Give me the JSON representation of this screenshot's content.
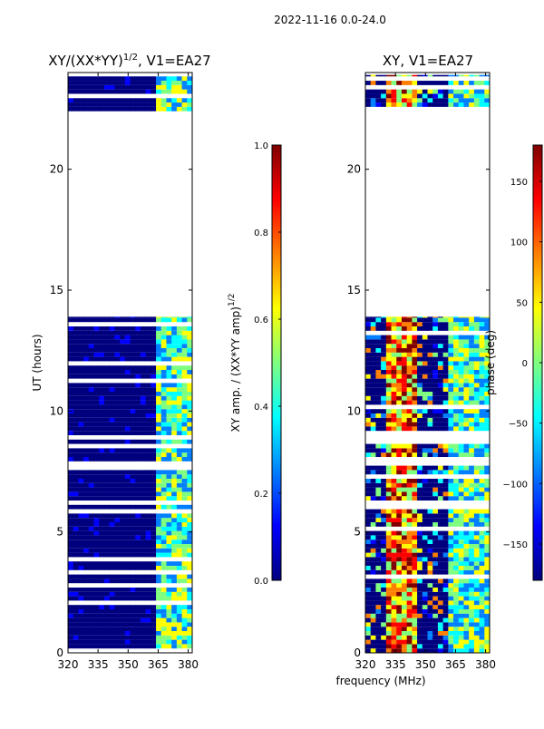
{
  "suptitle": "2022-11-16 0.0-24.0",
  "colormap": [
    "#00007f",
    "#0000ff",
    "#007fff",
    "#00ffff",
    "#7fff7f",
    "#ffff00",
    "#ff7f00",
    "#ff0000",
    "#7f0000"
  ],
  "chart_data": [
    {
      "type": "heatmap",
      "title": "XY/(XX*YY)^1/2, V1=EA27",
      "title_main": "XY/(XX*YY)",
      "title_sup": "1/2",
      "title_tail": ", V1=EA27",
      "xlabel": "",
      "ylabel": "UT (hours)",
      "xlim": [
        320,
        382
      ],
      "ylim": [
        0,
        24
      ],
      "xticks": [
        320,
        335,
        350,
        365,
        380
      ],
      "yticks": [
        0,
        5,
        10,
        15,
        20
      ],
      "data_hours": [
        [
          0,
          13.9
        ],
        [
          22.4,
          23.9
        ]
      ],
      "hot_band_mhz": [
        363,
        381
      ],
      "colorbar": {
        "label": "XY amp. / (XX*YY amp)^1/2",
        "label_main": "XY amp. / (XX*YY amp)",
        "label_sup": "1/2",
        "range": [
          0.0,
          1.0
        ],
        "ticks": [
          "0.0",
          "0.2",
          "0.4",
          "0.6",
          "0.8",
          "1.0"
        ]
      }
    },
    {
      "type": "heatmap",
      "title": "XY, V1=EA27",
      "xlabel": "frequency (MHz)",
      "ylabel": "",
      "xlim": [
        320,
        382
      ],
      "ylim": [
        0,
        24
      ],
      "xticks": [
        320,
        335,
        350,
        365,
        380
      ],
      "yticks": [
        0,
        5,
        10,
        15,
        20
      ],
      "data_hours": [
        [
          0,
          13.9
        ],
        [
          22.4,
          23.9
        ]
      ],
      "hot_band_mhz": [
        330,
        345
      ],
      "colorbar": {
        "label": "phase (deg)",
        "range": [
          -180,
          180
        ],
        "ticks": [
          "-150",
          "-100",
          "-50",
          "0",
          "50",
          "100",
          "150"
        ]
      }
    }
  ]
}
